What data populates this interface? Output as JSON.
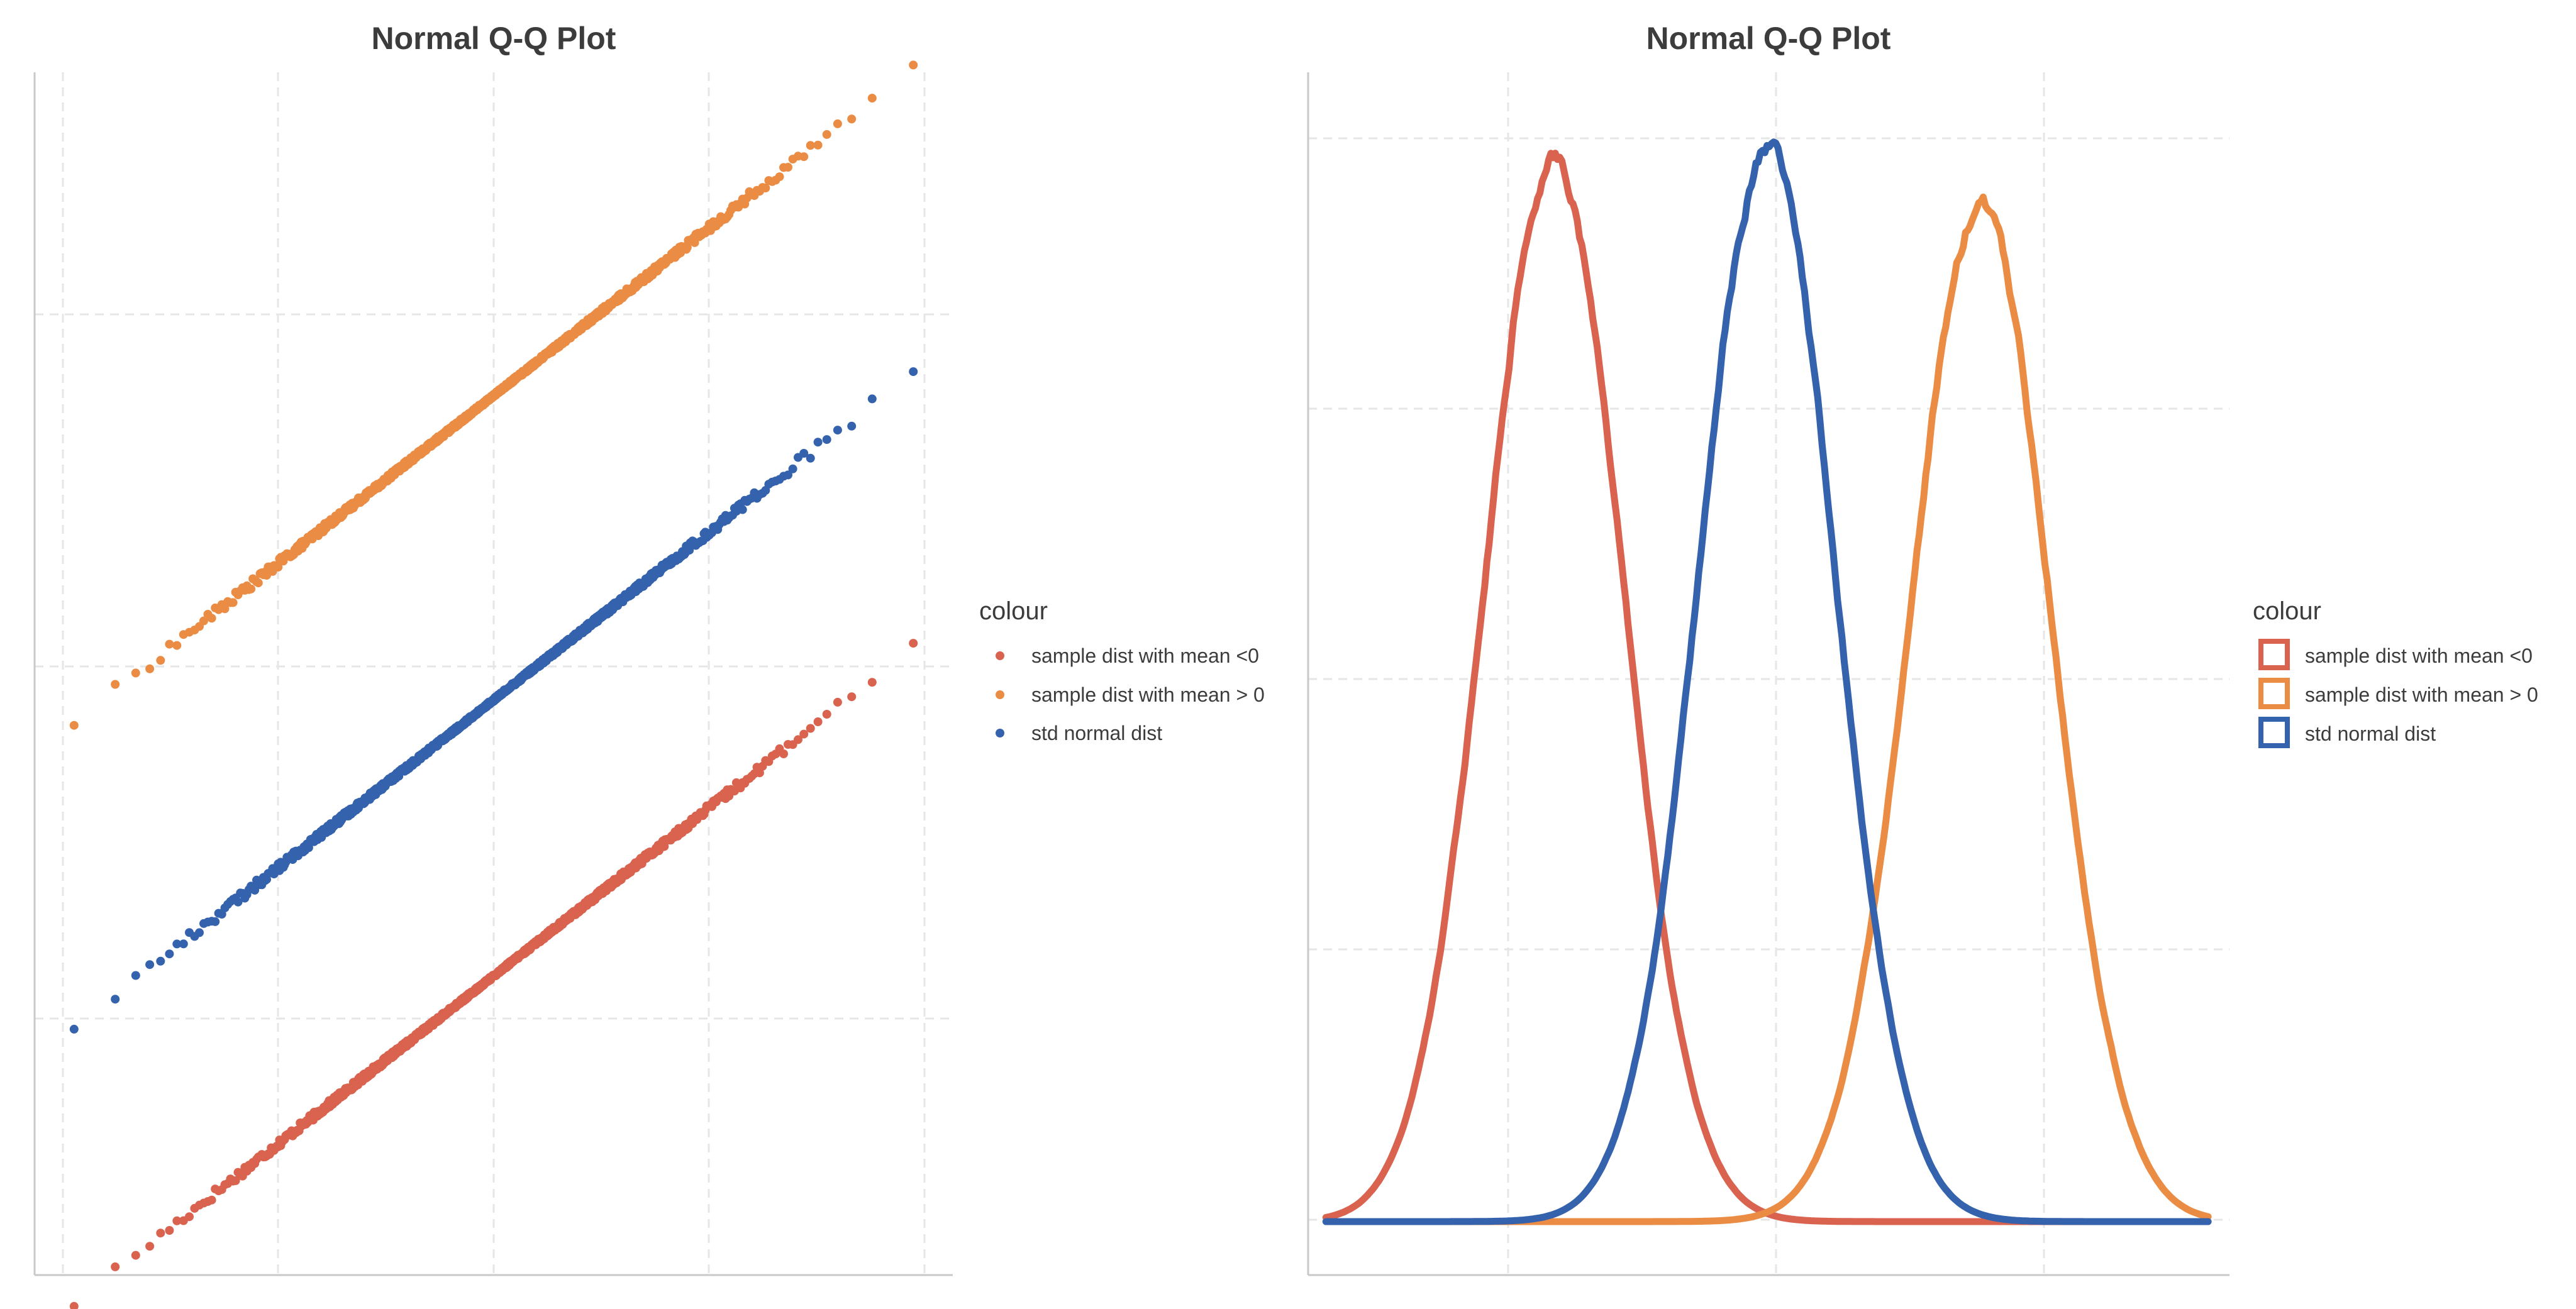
{
  "chart_data": [
    {
      "type": "scatter",
      "title": "Normal Q-Q Plot",
      "xlabel": "",
      "ylabel": "",
      "grid": true,
      "xlim": [
        -3.6,
        3.6
      ],
      "ylim": [
        -5.5,
        6.0
      ],
      "theoretical_range": [
        -3.45,
        3.45
      ],
      "legend": {
        "title": "colour",
        "placement": "right",
        "entries": [
          "sample dist with mean <0",
          "sample dist with mean > 0",
          "std normal dist"
        ]
      },
      "series": [
        {
          "name": "sample dist with mean <0",
          "color": "#d9634f",
          "offset": -2.64,
          "slope": 0.95,
          "n": 1000,
          "tail_lo": -3.2,
          "tail_hi": 3.2
        },
        {
          "name": "sample dist with mean > 0",
          "color": "#eb8c45",
          "offset": 2.91,
          "slope": 0.95,
          "n": 1000,
          "tail_lo": -3.2,
          "tail_hi": 3.2
        },
        {
          "name": "std normal dist",
          "color": "#3462ad",
          "offset": 0.0,
          "slope": 0.95,
          "n": 1000,
          "tail_lo": -3.2,
          "tail_hi": 3.2
        }
      ]
    },
    {
      "type": "line",
      "title": "Normal Q-Q Plot",
      "xlabel": "",
      "ylabel": "",
      "grid": true,
      "xlim": [
        -6.2,
        6.2
      ],
      "ylim": [
        -0.02,
        0.43
      ],
      "legend": {
        "title": "colour",
        "placement": "right",
        "entries": [
          "sample dist with mean <0",
          "sample dist with mean > 0",
          "std normal dist"
        ]
      },
      "series": [
        {
          "name": "sample dist with mean <0",
          "color": "#d9634f",
          "mean": -3.0,
          "sd": 0.96,
          "peak": 0.4,
          "x_start": -6.2,
          "x_end": 6.2
        },
        {
          "name": "sample dist with mean > 0",
          "color": "#eb8c45",
          "mean": 3.0,
          "sd": 0.98,
          "peak": 0.38,
          "x_start": -6.2,
          "x_end": 6.2
        },
        {
          "name": "std normal dist",
          "color": "#3462ad",
          "mean": 0.0,
          "sd": 0.95,
          "peak": 0.402,
          "x_start": -6.2,
          "x_end": 6.2
        }
      ]
    }
  ]
}
